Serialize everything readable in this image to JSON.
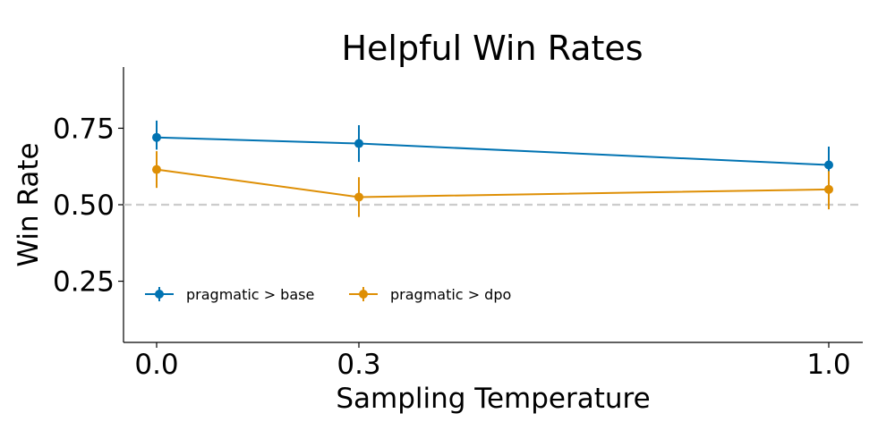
{
  "chart_data": {
    "type": "line",
    "title": "Helpful Win Rates",
    "xlabel": "Sampling Temperature",
    "ylabel": "Win Rate",
    "x": [
      0.0,
      0.3,
      1.0
    ],
    "x_tick_labels": [
      "0.0",
      "0.3",
      "1.0"
    ],
    "y_ticks": [
      0.25,
      0.5,
      0.75
    ],
    "y_tick_labels": [
      "0.25",
      "0.50",
      "0.75"
    ],
    "ylim": [
      0.05,
      0.95
    ],
    "grid": false,
    "reference_line": {
      "y": 0.5,
      "style": "dashed",
      "color": "#cccccc"
    },
    "legend_position": "lower-left",
    "series": [
      {
        "name": "pragmatic > base",
        "color": "#0173b2",
        "values": [
          0.72,
          0.7,
          0.63
        ],
        "error_low": [
          0.68,
          0.64,
          0.57
        ],
        "error_high": [
          0.775,
          0.76,
          0.69
        ]
      },
      {
        "name": "pragmatic > dpo",
        "color": "#de8f05",
        "values": [
          0.615,
          0.525,
          0.55
        ],
        "error_low": [
          0.555,
          0.46,
          0.485
        ],
        "error_high": [
          0.675,
          0.59,
          0.61
        ]
      }
    ]
  }
}
